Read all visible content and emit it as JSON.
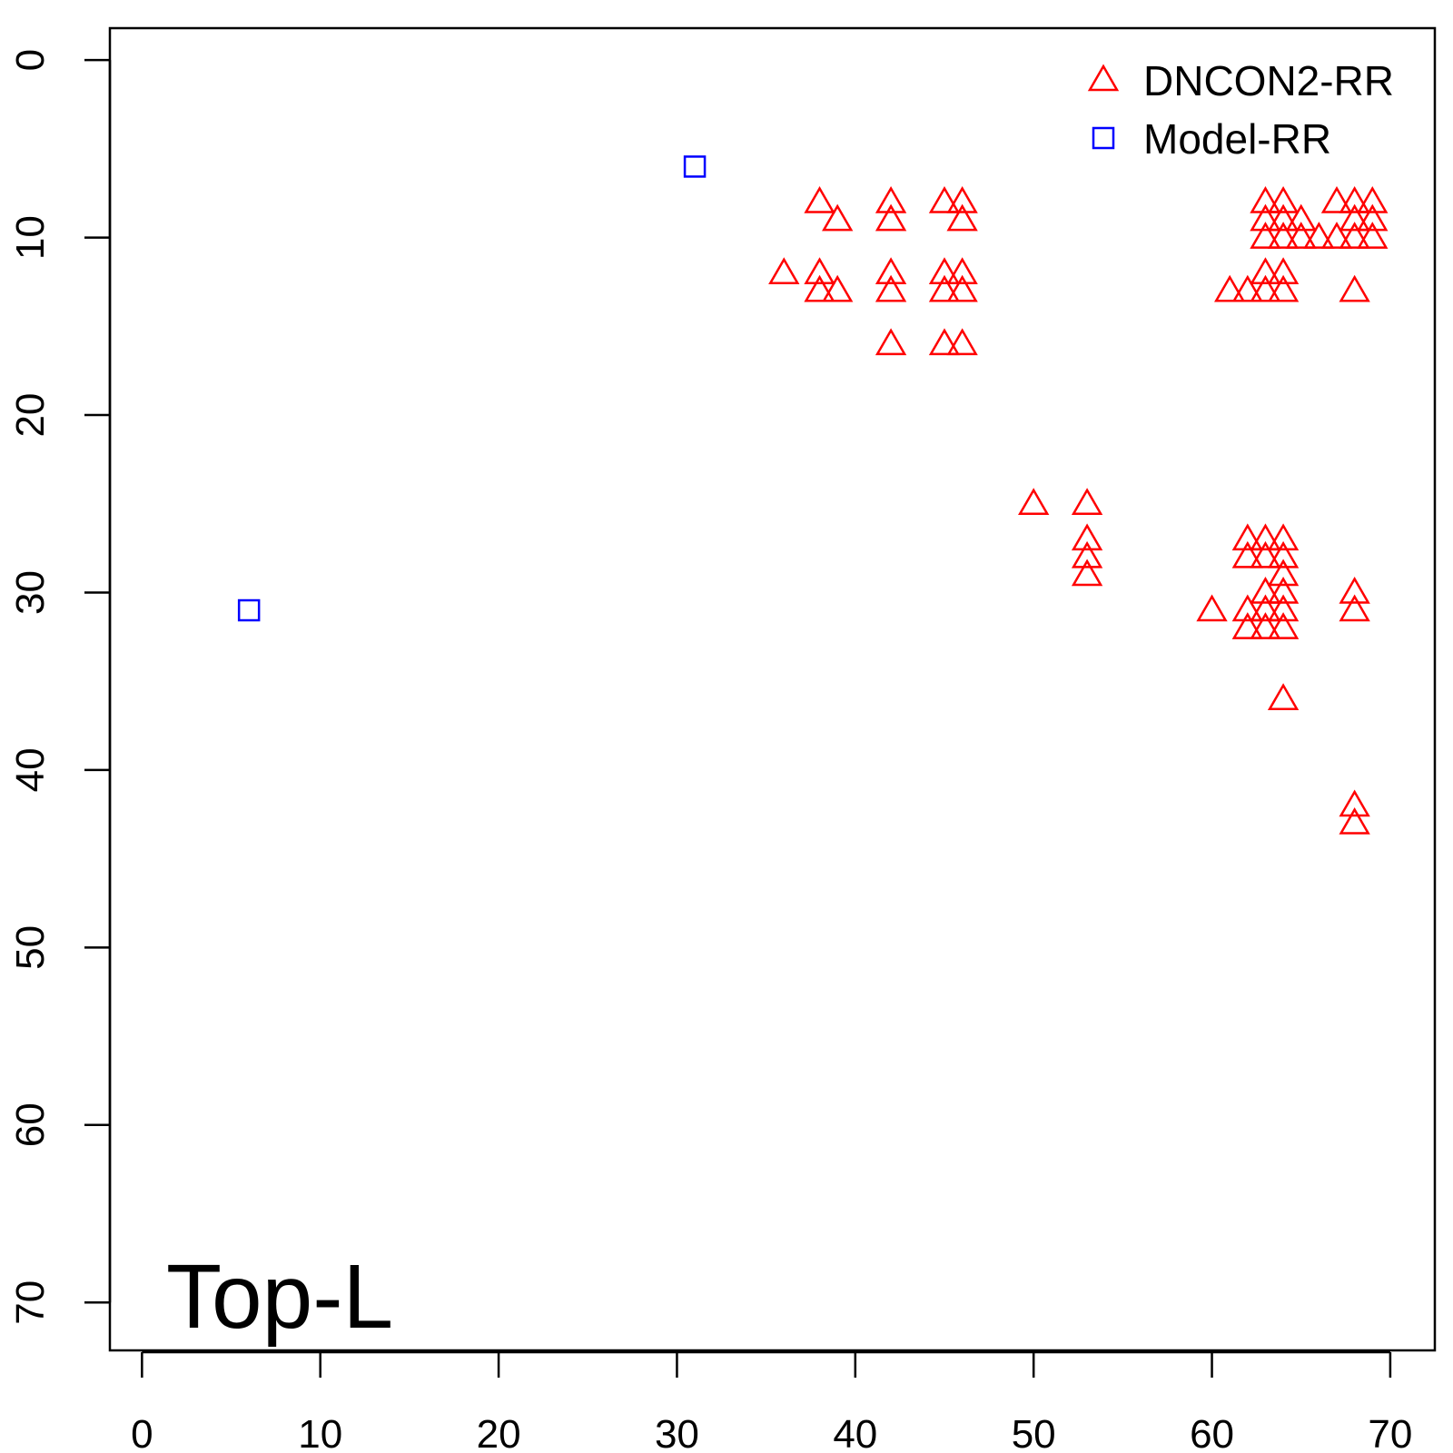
{
  "chart_data": {
    "type": "scatter",
    "title": "",
    "xlabel": "",
    "ylabel": "",
    "xlim": [
      -1.8,
      72.5
    ],
    "ylim": [
      -1.8,
      72.7
    ],
    "y_reversed": true,
    "xticks": [
      0,
      10,
      20,
      30,
      40,
      50,
      60,
      70
    ],
    "yticks": [
      0,
      10,
      20,
      30,
      40,
      50,
      60,
      70
    ],
    "grid": false,
    "legend_position": "top-right",
    "annotation": "Top-L",
    "series": [
      {
        "name": "DNCON2-RR",
        "marker": "triangle-open",
        "color": "#ff0000",
        "points": [
          [
            38,
            8
          ],
          [
            39,
            9
          ],
          [
            36,
            12
          ],
          [
            38,
            12
          ],
          [
            38,
            13
          ],
          [
            39,
            13
          ],
          [
            42,
            8
          ],
          [
            42,
            9
          ],
          [
            42,
            12
          ],
          [
            42,
            13
          ],
          [
            42,
            16
          ],
          [
            45,
            8
          ],
          [
            46,
            8
          ],
          [
            46,
            9
          ],
          [
            45,
            12
          ],
          [
            46,
            12
          ],
          [
            45,
            13
          ],
          [
            46,
            13
          ],
          [
            45,
            16
          ],
          [
            46,
            16
          ],
          [
            50,
            25
          ],
          [
            53,
            25
          ],
          [
            53,
            27
          ],
          [
            53,
            28
          ],
          [
            53,
            29
          ],
          [
            63,
            8
          ],
          [
            64,
            8
          ],
          [
            67,
            8
          ],
          [
            68,
            8
          ],
          [
            69,
            8
          ],
          [
            63,
            9
          ],
          [
            64,
            9
          ],
          [
            65,
            9
          ],
          [
            68,
            9
          ],
          [
            69,
            9
          ],
          [
            63,
            10
          ],
          [
            64,
            10
          ],
          [
            65,
            10
          ],
          [
            66,
            10
          ],
          [
            67,
            10
          ],
          [
            68,
            10
          ],
          [
            69,
            10
          ],
          [
            63,
            12
          ],
          [
            64,
            12
          ],
          [
            61,
            13
          ],
          [
            62,
            13
          ],
          [
            63,
            13
          ],
          [
            64,
            13
          ],
          [
            68,
            13
          ],
          [
            62,
            27
          ],
          [
            63,
            27
          ],
          [
            64,
            27
          ],
          [
            62,
            28
          ],
          [
            63,
            28
          ],
          [
            64,
            28
          ],
          [
            64,
            29
          ],
          [
            63,
            30
          ],
          [
            64,
            30
          ],
          [
            68,
            30
          ],
          [
            60,
            31
          ],
          [
            62,
            31
          ],
          [
            63,
            31
          ],
          [
            64,
            31
          ],
          [
            68,
            31
          ],
          [
            62,
            32
          ],
          [
            63,
            32
          ],
          [
            64,
            32
          ],
          [
            64,
            36
          ],
          [
            68,
            42
          ],
          [
            68,
            43
          ]
        ]
      },
      {
        "name": "Model-RR",
        "marker": "square-open",
        "color": "#0000ff",
        "points": [
          [
            31,
            6
          ],
          [
            6,
            31
          ]
        ]
      }
    ]
  }
}
